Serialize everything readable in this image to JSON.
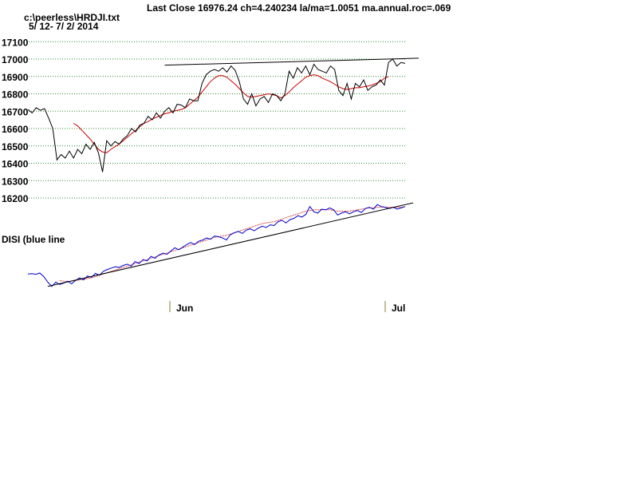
{
  "header": {
    "title": "Last Close 16976.24 ch=4.240234  la/ma=1.0051 ma.annual.roc=.069",
    "file_path": "c:\\peerless\\HRDJI.txt",
    "date_range": "5/ 12- 7/ 2/ 2014"
  },
  "chart_data": [
    {
      "type": "line",
      "panel": "price",
      "title": "",
      "xlabel": "",
      "ylabel": "",
      "yticks": [
        17100,
        17000,
        16900,
        16800,
        16700,
        16600,
        16500,
        16400,
        16300,
        16200
      ],
      "ylim": [
        16150,
        17125
      ],
      "grid": true,
      "series": [
        {
          "color": "#000000",
          "values": [
            16710,
            16690,
            16720,
            16705,
            16715,
            16660,
            16600,
            16420,
            16450,
            16430,
            16470,
            16430,
            16480,
            16455,
            16510,
            16480,
            16520,
            16460,
            16350,
            16530,
            16500,
            16525,
            16510,
            16540,
            16560,
            16600,
            16580,
            16620,
            16630,
            16670,
            16650,
            16690,
            16660,
            16700,
            16720,
            16690,
            16740,
            16735,
            16720,
            16770,
            16760,
            16760,
            16860,
            16910,
            16930,
            16940,
            16930,
            16950,
            16925,
            16960,
            16935,
            16870,
            16770,
            16740,
            16800,
            16730,
            16770,
            16785,
            16750,
            16800,
            16790,
            16760,
            16800,
            16930,
            16890,
            16950,
            16920,
            16960,
            16910,
            16970,
            16940,
            16930,
            16920,
            16960,
            16940,
            16820,
            16790,
            16860,
            16770,
            16860,
            16840,
            16880,
            16820,
            16840,
            16850,
            16880,
            16850,
            16980,
            17000,
            16960,
            16980,
            16975
          ]
        },
        {
          "color": "#cc0000",
          "values": [
            null,
            null,
            null,
            null,
            null,
            null,
            null,
            null,
            null,
            null,
            null,
            16630,
            16615,
            16590,
            16565,
            16540,
            16510,
            16480,
            16465,
            16460,
            16480,
            16495,
            16510,
            16530,
            16550,
            16570,
            16590,
            16610,
            16630,
            16640,
            16655,
            16665,
            16675,
            16685,
            16690,
            16700,
            16705,
            16710,
            16720,
            16740,
            16760,
            16780,
            16810,
            16840,
            16870,
            16890,
            16905,
            16905,
            16895,
            16875,
            16855,
            16830,
            16805,
            16785,
            16780,
            16785,
            16790,
            16795,
            16800,
            16795,
            16790,
            16775,
            16790,
            16810,
            16835,
            16855,
            16875,
            16895,
            16905,
            16910,
            16905,
            16890,
            16880,
            16870,
            16855,
            16840,
            16830,
            16825,
            16830,
            16835,
            16835,
            16840,
            16845,
            16850,
            16860,
            16870,
            16890,
            16900
          ]
        },
        {
          "color": "#000000",
          "trendline": true,
          "values": [
            {
              "i": 33,
              "v": 16965
            },
            {
              "i": 91,
              "v": 17005
            }
          ]
        }
      ]
    },
    {
      "type": "line",
      "panel": "indicator",
      "title": "DISI (blue line",
      "series": [
        {
          "color": "#0000cc",
          "values": [
            80,
            81,
            79,
            83,
            72,
            55,
            42,
            55,
            48,
            52,
            58,
            50,
            60,
            68,
            62,
            74,
            70,
            82,
            76,
            88,
            94,
            98,
            102,
            100,
            106,
            110,
            104,
            118,
            112,
            124,
            120,
            134,
            128,
            138,
            144,
            140,
            150,
            160,
            154,
            162,
            170,
            176,
            170,
            180,
            184,
            190,
            186,
            196,
            194,
            190,
            184,
            200,
            206,
            210,
            204,
            214,
            218,
            212,
            220,
            226,
            222,
            230,
            228,
            240,
            244,
            236,
            246,
            250,
            258,
            254,
            262,
            286,
            270,
            266,
            278,
            276,
            282,
            276,
            260,
            266,
            270,
            264,
            270,
            274,
            268,
            280,
            284,
            278,
            292,
            286,
            284,
            280,
            284,
            278,
            282,
            286
          ]
        },
        {
          "color": "#cc0000",
          "dashed": true,
          "values": [
            null,
            null,
            null,
            null,
            null,
            null,
            null,
            null,
            60,
            58,
            56,
            58,
            60,
            62,
            64,
            66,
            68,
            72,
            76,
            80,
            84,
            88,
            92,
            96,
            100,
            104,
            108,
            112,
            116,
            120,
            124,
            128,
            132,
            136,
            140,
            144,
            148,
            152,
            156,
            160,
            164,
            168,
            172,
            176,
            180,
            184,
            188,
            192,
            194,
            196,
            198,
            202,
            206,
            210,
            214,
            218,
            222,
            226,
            230,
            234,
            236,
            238,
            240,
            244,
            248,
            252,
            256,
            260,
            264,
            268,
            272,
            274,
            276,
            276,
            276,
            276,
            276,
            274,
            272,
            272,
            272,
            272,
            274,
            276,
            278,
            280,
            282,
            282,
            284,
            284,
            284,
            284,
            284,
            284,
            284,
            286
          ]
        },
        {
          "color": "#000000",
          "trendline": true,
          "values": [
            {
              "i": 5,
              "v": 42
            },
            {
              "i": 95,
              "v": 290
            }
          ]
        }
      ]
    }
  ],
  "x_axis": {
    "ticks": [
      {
        "label": "Jun",
        "i": 14
      },
      {
        "label": "Jul",
        "i": 88
      }
    ]
  }
}
